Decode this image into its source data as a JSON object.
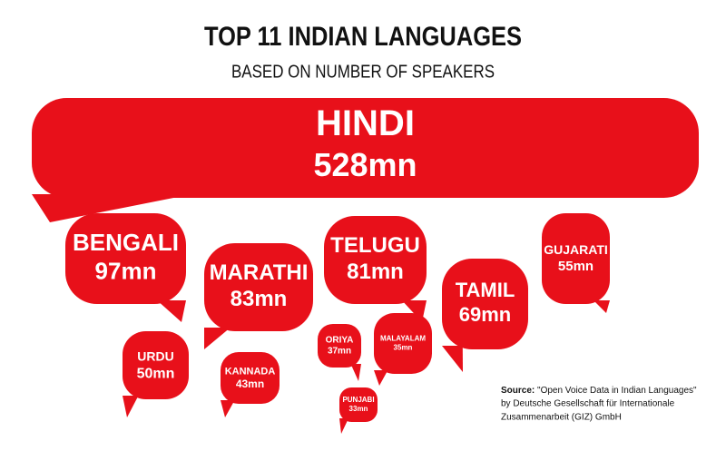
{
  "title": "TOP 11 INDIAN LANGUAGES",
  "subtitle": "BASED ON NUMBER OF SPEAKERS",
  "languages": [
    {
      "name": "HINDI",
      "speakers": "528mn"
    },
    {
      "name": "BENGALI",
      "speakers": "97mn"
    },
    {
      "name": "MARATHI",
      "speakers": "83mn"
    },
    {
      "name": "TELUGU",
      "speakers": "81mn"
    },
    {
      "name": "TAMIL",
      "speakers": "69mn"
    },
    {
      "name": "GUJARATI",
      "speakers": "55mn"
    },
    {
      "name": "URDU",
      "speakers": "50mn"
    },
    {
      "name": "KANNADA",
      "speakers": "43mn"
    },
    {
      "name": "ORIYA",
      "speakers": "37mn"
    },
    {
      "name": "MALAYALAM",
      "speakers": "35mn"
    },
    {
      "name": "PUNJABI",
      "speakers": "33mn"
    }
  ],
  "source": {
    "label": "Source:",
    "lines": [
      "\"Open Voice Data in Indian Languages\"",
      "by Deutsche Gesellschaft für Internationale",
      "Zusammenarbeit (GIZ) GmbH"
    ]
  }
}
